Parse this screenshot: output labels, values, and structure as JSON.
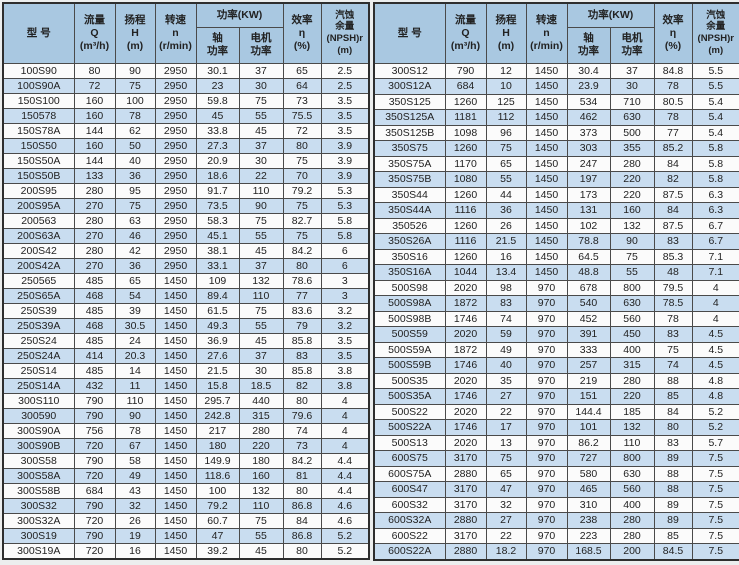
{
  "colors": {
    "page_bg": "#eceeee",
    "header_bg": "#a9c8e1",
    "stripe_bg": "#c9ddf0",
    "row_bg": "#fbfbfb",
    "border": "#4a4a4a",
    "border_dark": "#2e2e2e",
    "text": "#222222"
  },
  "header": {
    "model": "型 号",
    "flow": "流量\nQ\n(m³/h)",
    "head": "扬程\nH\n(m)",
    "speed": "转速\nn\n(r/min)",
    "power": "功率(KW)",
    "power_shaft": "轴\n功率",
    "power_motor": "电机\n功率",
    "efficiency": "效率\nη\n(%)",
    "npsh": "汽蚀\n余量\n(NPSH)r\n(m)"
  },
  "tables": {
    "left": {
      "rows": [
        [
          "100S90",
          "80",
          "90",
          "2950",
          "30.1",
          "37",
          "65",
          "2.5"
        ],
        [
          "100S90A",
          "72",
          "75",
          "2950",
          "23",
          "30",
          "64",
          "2.5"
        ],
        [
          "150S100",
          "160",
          "100",
          "2950",
          "59.8",
          "75",
          "73",
          "3.5"
        ],
        [
          "150578",
          "160",
          "78",
          "2950",
          "45",
          "55",
          "75.5",
          "3.5"
        ],
        [
          "150S78A",
          "144",
          "62",
          "2950",
          "33.8",
          "45",
          "72",
          "3.5"
        ],
        [
          "150S50",
          "160",
          "50",
          "2950",
          "27.3",
          "37",
          "80",
          "3.9"
        ],
        [
          "150S50A",
          "144",
          "40",
          "2950",
          "20.9",
          "30",
          "75",
          "3.9"
        ],
        [
          "150S50B",
          "133",
          "36",
          "2950",
          "18.6",
          "22",
          "70",
          "3.9"
        ],
        [
          "200S95",
          "280",
          "95",
          "2950",
          "91.7",
          "110",
          "79.2",
          "5.3"
        ],
        [
          "200S95A",
          "270",
          "75",
          "2950",
          "73.5",
          "90",
          "75",
          "5.3"
        ],
        [
          "200563",
          "280",
          "63",
          "2950",
          "58.3",
          "75",
          "82.7",
          "5.8"
        ],
        [
          "200S63A",
          "270",
          "46",
          "2950",
          "45.1",
          "55",
          "75",
          "5.8"
        ],
        [
          "200S42",
          "280",
          "42",
          "2950",
          "38.1",
          "45",
          "84.2",
          "6"
        ],
        [
          "200S42A",
          "270",
          "36",
          "2950",
          "33.1",
          "37",
          "80",
          "6"
        ],
        [
          "250565",
          "485",
          "65",
          "1450",
          "109",
          "132",
          "78.6",
          "3"
        ],
        [
          "250S65A",
          "468",
          "54",
          "1450",
          "89.4",
          "110",
          "77",
          "3"
        ],
        [
          "250S39",
          "485",
          "39",
          "1450",
          "61.5",
          "75",
          "83.6",
          "3.2"
        ],
        [
          "250S39A",
          "468",
          "30.5",
          "1450",
          "49.3",
          "55",
          "79",
          "3.2"
        ],
        [
          "250S24",
          "485",
          "24",
          "1450",
          "36.9",
          "45",
          "85.8",
          "3.5"
        ],
        [
          "250S24A",
          "414",
          "20.3",
          "1450",
          "27.6",
          "37",
          "83",
          "3.5"
        ],
        [
          "250S14",
          "485",
          "14",
          "1450",
          "21.5",
          "30",
          "85.8",
          "3.8"
        ],
        [
          "250S14A",
          "432",
          "11",
          "1450",
          "15.8",
          "18.5",
          "82",
          "3.8"
        ],
        [
          "300S110",
          "790",
          "110",
          "1450",
          "295.7",
          "440",
          "80",
          "4"
        ],
        [
          "300590",
          "790",
          "90",
          "1450",
          "242.8",
          "315",
          "79.6",
          "4"
        ],
        [
          "300S90A",
          "756",
          "78",
          "1450",
          "217",
          "280",
          "74",
          "4"
        ],
        [
          "300S90B",
          "720",
          "67",
          "1450",
          "180",
          "220",
          "73",
          "4"
        ],
        [
          "300S58",
          "790",
          "58",
          "1450",
          "149.9",
          "180",
          "84.2",
          "4.4"
        ],
        [
          "300S58A",
          "720",
          "49",
          "1450",
          "118.6",
          "160",
          "81",
          "4.4"
        ],
        [
          "300S58B",
          "684",
          "43",
          "1450",
          "100",
          "132",
          "80",
          "4.4"
        ],
        [
          "300S32",
          "790",
          "32",
          "1450",
          "79.2",
          "110",
          "86.8",
          "4.6"
        ],
        [
          "300S32A",
          "720",
          "26",
          "1450",
          "60.7",
          "75",
          "84",
          "4.6"
        ],
        [
          "300S19",
          "790",
          "19",
          "1450",
          "47",
          "55",
          "86.8",
          "5.2"
        ],
        [
          "300S19A",
          "720",
          "16",
          "1450",
          "39.2",
          "45",
          "80",
          "5.2"
        ]
      ]
    },
    "right": {
      "rows": [
        [
          "300S12",
          "790",
          "12",
          "1450",
          "30.4",
          "37",
          "84.8",
          "5.5"
        ],
        [
          "300S12A",
          "684",
          "10",
          "1450",
          "23.9",
          "30",
          "78",
          "5.5"
        ],
        [
          "350S125",
          "1260",
          "125",
          "1450",
          "534",
          "710",
          "80.5",
          "5.4"
        ],
        [
          "350S125A",
          "1181",
          "112",
          "1450",
          "462",
          "630",
          "78",
          "5.4"
        ],
        [
          "350S125B",
          "1098",
          "96",
          "1450",
          "373",
          "500",
          "77",
          "5.4"
        ],
        [
          "350S75",
          "1260",
          "75",
          "1450",
          "303",
          "355",
          "85.2",
          "5.8"
        ],
        [
          "350S75A",
          "1170",
          "65",
          "1450",
          "247",
          "280",
          "84",
          "5.8"
        ],
        [
          "350S75B",
          "1080",
          "55",
          "1450",
          "197",
          "220",
          "82",
          "5.8"
        ],
        [
          "350S44",
          "1260",
          "44",
          "1450",
          "173",
          "220",
          "87.5",
          "6.3"
        ],
        [
          "350S44A",
          "1116",
          "36",
          "1450",
          "131",
          "160",
          "84",
          "6.3"
        ],
        [
          "350526",
          "1260",
          "26",
          "1450",
          "102",
          "132",
          "87.5",
          "6.7"
        ],
        [
          "350S26A",
          "1116",
          "21.5",
          "1450",
          "78.8",
          "90",
          "83",
          "6.7"
        ],
        [
          "350S16",
          "1260",
          "16",
          "1450",
          "64.5",
          "75",
          "85.3",
          "7.1"
        ],
        [
          "350S16A",
          "1044",
          "13.4",
          "1450",
          "48.8",
          "55",
          "48",
          "7.1"
        ],
        [
          "500S98",
          "2020",
          "98",
          "970",
          "678",
          "800",
          "79.5",
          "4"
        ],
        [
          "500S98A",
          "1872",
          "83",
          "970",
          "540",
          "630",
          "78.5",
          "4"
        ],
        [
          "500S98B",
          "1746",
          "74",
          "970",
          "452",
          "560",
          "78",
          "4"
        ],
        [
          "500S59",
          "2020",
          "59",
          "970",
          "391",
          "450",
          "83",
          "4.5"
        ],
        [
          "500S59A",
          "1872",
          "49",
          "970",
          "333",
          "400",
          "75",
          "4.5"
        ],
        [
          "500S59B",
          "1746",
          "40",
          "970",
          "257",
          "315",
          "74",
          "4.5"
        ],
        [
          "500S35",
          "2020",
          "35",
          "970",
          "219",
          "280",
          "88",
          "4.8"
        ],
        [
          "500S35A",
          "1746",
          "27",
          "970",
          "151",
          "220",
          "85",
          "4.8"
        ],
        [
          "500S22",
          "2020",
          "22",
          "970",
          "144.4",
          "185",
          "84",
          "5.2"
        ],
        [
          "500S22A",
          "1746",
          "17",
          "970",
          "101",
          "132",
          "80",
          "5.2"
        ],
        [
          "500S13",
          "2020",
          "13",
          "970",
          "86.2",
          "110",
          "83",
          "5.7"
        ],
        [
          "600S75",
          "3170",
          "75",
          "970",
          "727",
          "800",
          "89",
          "7.5"
        ],
        [
          "600S75A",
          "2880",
          "65",
          "970",
          "580",
          "630",
          "88",
          "7.5"
        ],
        [
          "600S47",
          "3170",
          "47",
          "970",
          "465",
          "560",
          "88",
          "7.5"
        ],
        [
          "600S32",
          "3170",
          "32",
          "970",
          "310",
          "400",
          "89",
          "7.5"
        ],
        [
          "600S32A",
          "2880",
          "27",
          "970",
          "238",
          "280",
          "89",
          "7.5"
        ],
        [
          "600S22",
          "3170",
          "22",
          "970",
          "223",
          "280",
          "85",
          "7.5"
        ],
        [
          "600S22A",
          "2880",
          "18.2",
          "970",
          "168.5",
          "200",
          "84.5",
          "7.5"
        ]
      ]
    }
  }
}
